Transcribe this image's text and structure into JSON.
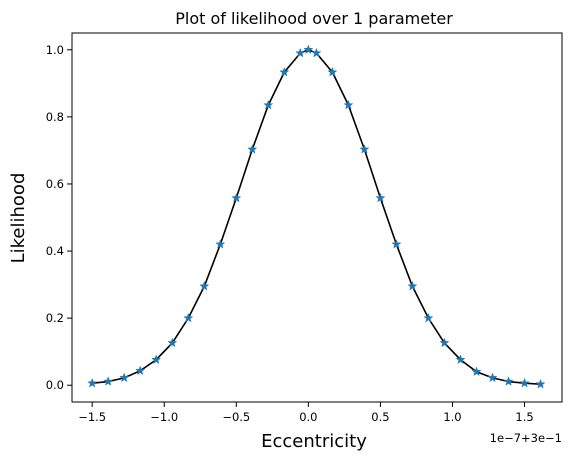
{
  "chart_data": {
    "type": "line",
    "title": "Plot of likelihood over 1 parameter",
    "xlabel": "Eccentricity",
    "ylabel": "Likelihood",
    "x_offset_label": "1e−7+3e−1",
    "xlim": [
      -1.64,
      1.76
    ],
    "ylim": [
      -0.05,
      1.05
    ],
    "xticks": [
      -1.5,
      -1.0,
      -0.5,
      0.0,
      0.5,
      1.0,
      1.5
    ],
    "xtick_labels": [
      "−1.5",
      "−1.0",
      "−0.5",
      "0.0",
      "0.5",
      "1.0",
      "1.5"
    ],
    "yticks": [
      0.0,
      0.2,
      0.4,
      0.6,
      0.8,
      1.0
    ],
    "ytick_labels": [
      "0.0",
      "0.2",
      "0.4",
      "0.6",
      "0.8",
      "1.0"
    ],
    "grid": false,
    "colors": {
      "line": "#000000",
      "marker": "#1f77b4"
    },
    "series": [
      {
        "marker": "star",
        "x": [
          -1.5,
          -1.389,
          -1.278,
          -1.167,
          -1.056,
          -0.944,
          -0.833,
          -0.722,
          -0.611,
          -0.5,
          -0.389,
          -0.278,
          -0.167,
          -0.056,
          0.0,
          0.056,
          0.167,
          0.278,
          0.389,
          0.5,
          0.611,
          0.722,
          0.833,
          0.944,
          1.056,
          1.167,
          1.278,
          1.389,
          1.5,
          1.611
        ],
        "y": [
          0.006,
          0.011,
          0.022,
          0.043,
          0.076,
          0.126,
          0.2,
          0.295,
          0.42,
          0.558,
          0.703,
          0.835,
          0.933,
          0.99,
          1.0,
          0.99,
          0.933,
          0.835,
          0.703,
          0.558,
          0.42,
          0.295,
          0.2,
          0.126,
          0.076,
          0.04,
          0.022,
          0.011,
          0.006,
          0.003
        ]
      }
    ]
  }
}
